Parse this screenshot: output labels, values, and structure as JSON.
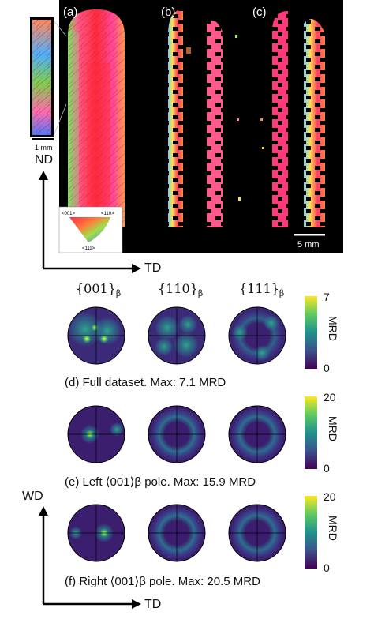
{
  "ebsd": {
    "labels": [
      "(a)",
      "(b)",
      "(c)"
    ],
    "inset_scale": "1 mm",
    "scale_bar": "5 mm",
    "ipf_key": {
      "c001": "<001>",
      "c110": "<110>",
      "c111": "<111>"
    }
  },
  "axes_top": {
    "nd": "ND",
    "td": "TD"
  },
  "pole_headers": {
    "h001": "{001}",
    "h110": "{110}",
    "h111": "{111}",
    "subscript": "β"
  },
  "rows": [
    {
      "caption": "(d) Full dataset. Max: 7.1 MRD",
      "cb_max": "7",
      "cb_min": "0",
      "unit": "MRD"
    },
    {
      "caption": "(e) Left ⟨001⟩β pole. Max: 15.9 MRD",
      "cb_max": "20",
      "cb_min": "0",
      "unit": "MRD"
    },
    {
      "caption": "(f) Right ⟨001⟩β pole. Max: 20.5 MRD",
      "cb_max": "20",
      "cb_min": "0",
      "unit": "MRD"
    }
  ],
  "axes_bottom": {
    "wd": "WD",
    "td": "TD"
  },
  "colors": {
    "pf_background": "#3b1f6e",
    "pf_hot": "#f2e51f",
    "pf_mid": "#2a8a8a"
  }
}
